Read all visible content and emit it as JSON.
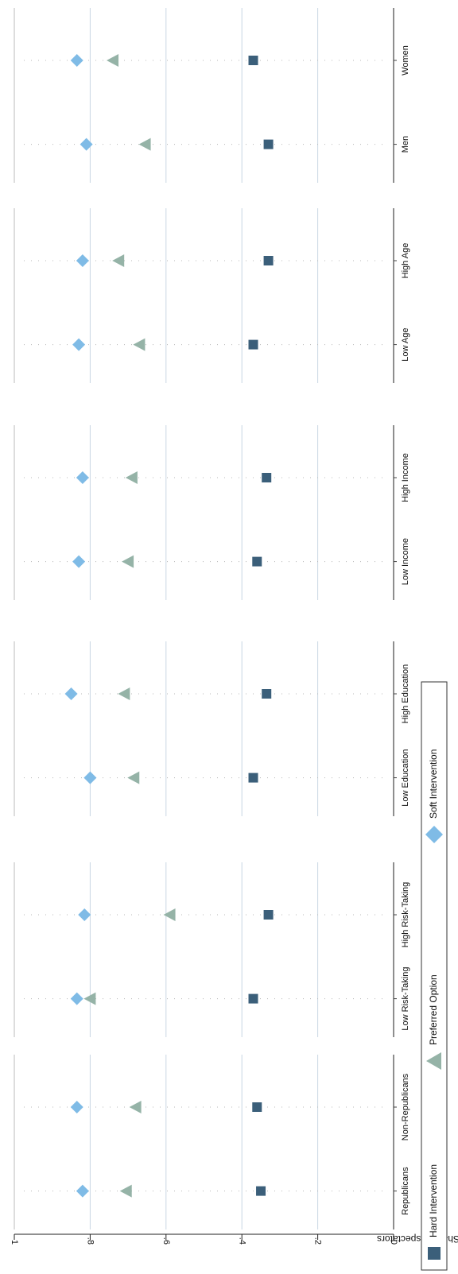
{
  "chart_data": {
    "type": "scatter",
    "title": "",
    "ylabel": "Share of spectators",
    "ylim": [
      0,
      1
    ],
    "yticks": [
      "0",
      ".2",
      ".4",
      ".6",
      ".8",
      "1"
    ],
    "orientation": "rotated-90",
    "grid": true,
    "legend_position": "bottom",
    "panels": [
      {
        "categories": [
          "Republicans",
          "Non-Republicans"
        ]
      },
      {
        "categories": [
          "Low Risk-Taking",
          "High Risk-Taking"
        ]
      },
      {
        "categories": [
          "Low Education",
          "High Education"
        ]
      },
      {
        "categories": [
          "Low Income",
          "High Income"
        ]
      },
      {
        "categories": [
          "Low Age",
          "High Age"
        ]
      },
      {
        "categories": [
          "Men",
          "Women"
        ]
      }
    ],
    "series": [
      {
        "name": "Hard Intervention",
        "marker": "square",
        "color": "#3b5f7a",
        "values": [
          [
            0.35,
            0.36
          ],
          [
            0.37,
            0.33
          ],
          [
            0.37,
            0.335
          ],
          [
            0.36,
            0.335
          ],
          [
            0.37,
            0.33
          ],
          [
            0.33,
            0.37
          ]
        ]
      },
      {
        "name": "Preferred Option",
        "marker": "triangle",
        "color": "#95b3a7",
        "values": [
          [
            0.705,
            0.68
          ],
          [
            0.8,
            0.59
          ],
          [
            0.685,
            0.71
          ],
          [
            0.7,
            0.69
          ],
          [
            0.67,
            0.725
          ],
          [
            0.655,
            0.74
          ]
        ]
      },
      {
        "name": "Soft Intervention",
        "marker": "diamond",
        "color": "#7fbbe6",
        "values": [
          [
            0.82,
            0.835
          ],
          [
            0.835,
            0.815
          ],
          [
            0.8,
            0.85
          ],
          [
            0.83,
            0.82
          ],
          [
            0.83,
            0.82
          ],
          [
            0.81,
            0.835
          ]
        ]
      }
    ]
  }
}
